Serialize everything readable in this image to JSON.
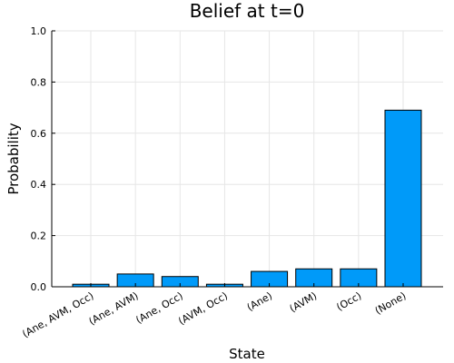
{
  "chart_data": {
    "type": "bar",
    "title": "Belief at t=0",
    "xlabel": "State",
    "ylabel": "Probability",
    "categories": [
      "(Ane, AVM, Occ)",
      "(Ane, AVM)",
      "(Ane, Occ)",
      "(AVM, Occ)",
      "(Ane)",
      "(AVM)",
      "(Occ)",
      "(None)"
    ],
    "values": [
      0.01,
      0.05,
      0.04,
      0.01,
      0.06,
      0.07,
      0.07,
      0.69
    ],
    "ylim": [
      0,
      1
    ],
    "yticks": [
      "0.0",
      "0.2",
      "0.4",
      "0.6",
      "0.8",
      "1.0"
    ],
    "grid": true,
    "legend": false,
    "bar_color": "#009AF9",
    "bar_edge_color": "#000000"
  }
}
